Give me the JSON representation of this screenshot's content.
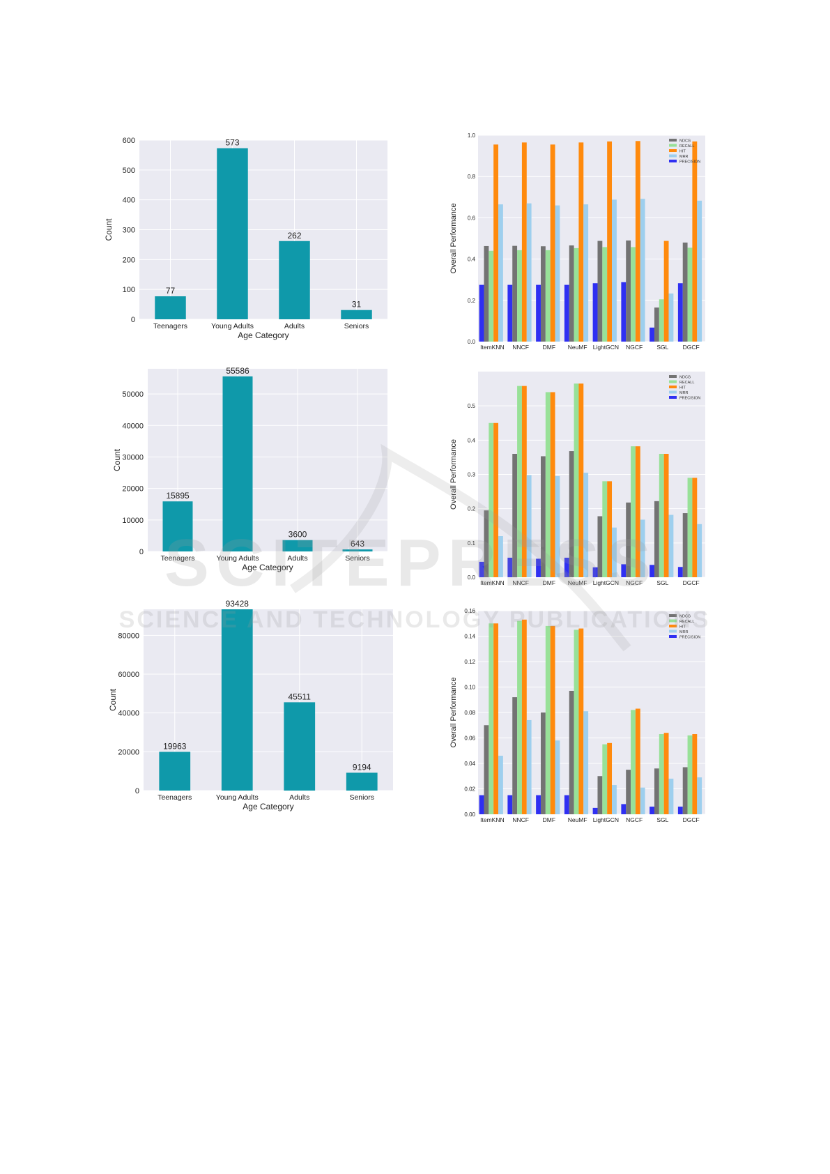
{
  "colors": {
    "bar": "#0f99aa",
    "plot_bg": "#eaeaf2",
    "grid": "#ffffff",
    "NDCG": "#737373",
    "RECALL": "#98e198",
    "HIT": "#ff8a0d",
    "MRR": "#9ecfee",
    "PRECISION": "#2f2ff2"
  },
  "watermark": {
    "line1": "SCITEPRESS",
    "line2": "SCIENCE AND TECHNOLOGY PUBLICATIONS"
  },
  "chart_data": [
    {
      "type": "bar",
      "categories": [
        "Teenagers",
        "Young Adults",
        "Adults",
        "Seniors"
      ],
      "values": [
        77,
        573,
        262,
        31
      ],
      "xlabel": "Age Category",
      "ylabel": "Count",
      "ylim": [
        0,
        600
      ],
      "yticks": [
        0,
        100,
        200,
        300,
        400,
        500,
        600
      ],
      "grid": true
    },
    {
      "type": "bar",
      "categories": [
        "ItemKNN",
        "NNCF",
        "DMF",
        "NeuMF",
        "LightGCN",
        "NGCF",
        "SGL",
        "DGCF"
      ],
      "series": [
        {
          "name": "PRECISION",
          "values": [
            0.275,
            0.275,
            0.275,
            0.275,
            0.283,
            0.288,
            0.068,
            0.283
          ]
        },
        {
          "name": "NDCG",
          "values": [
            0.463,
            0.464,
            0.462,
            0.466,
            0.488,
            0.49,
            0.165,
            0.48
          ]
        },
        {
          "name": "RECALL",
          "values": [
            0.44,
            0.443,
            0.443,
            0.453,
            0.458,
            0.458,
            0.205,
            0.455
          ]
        },
        {
          "name": "HIT",
          "values": [
            0.955,
            0.965,
            0.955,
            0.965,
            0.97,
            0.972,
            0.488,
            0.97
          ]
        },
        {
          "name": "MRR",
          "values": [
            0.665,
            0.67,
            0.66,
            0.665,
            0.688,
            0.692,
            0.233,
            0.683
          ]
        }
      ],
      "ylabel": "Overall Performance",
      "ylim": [
        0,
        1.0
      ],
      "yticks": [
        "0.0",
        "0.2",
        "0.4",
        "0.6",
        "0.8",
        "1.0"
      ],
      "legend": [
        "NDCG",
        "RECALL",
        "HIT",
        "MRR",
        "PRECISION"
      ],
      "legend_position": "top-right"
    },
    {
      "type": "bar",
      "categories": [
        "Teenagers",
        "Young Adults",
        "Adults",
        "Seniors"
      ],
      "values": [
        15895,
        55586,
        3600,
        643
      ],
      "xlabel": "Age Category",
      "ylabel": "Count",
      "ylim": [
        0,
        58000
      ],
      "yticks": [
        0,
        10000,
        20000,
        30000,
        40000,
        50000
      ],
      "grid": true
    },
    {
      "type": "bar",
      "categories": [
        "ItemKNN",
        "NNCF",
        "DMF",
        "NeuMF",
        "LightGCN",
        "NGCF",
        "SGL",
        "DGCF"
      ],
      "series": [
        {
          "name": "PRECISION",
          "values": [
            0.045,
            0.057,
            0.054,
            0.057,
            0.029,
            0.038,
            0.036,
            0.03
          ]
        },
        {
          "name": "NDCG",
          "values": [
            0.195,
            0.36,
            0.353,
            0.368,
            0.178,
            0.218,
            0.222,
            0.187
          ]
        },
        {
          "name": "RECALL",
          "values": [
            0.45,
            0.558,
            0.54,
            0.565,
            0.28,
            0.382,
            0.36,
            0.29
          ]
        },
        {
          "name": "HIT",
          "values": [
            0.45,
            0.558,
            0.54,
            0.565,
            0.28,
            0.382,
            0.36,
            0.29
          ]
        },
        {
          "name": "MRR",
          "values": [
            0.12,
            0.298,
            0.295,
            0.305,
            0.145,
            0.168,
            0.182,
            0.155
          ]
        }
      ],
      "ylabel": "Overall Performance",
      "ylim": [
        0,
        0.6
      ],
      "yticks": [
        "0.0",
        "0.1",
        "0.2",
        "0.3",
        "0.4",
        "0.5"
      ],
      "legend": [
        "NDCG",
        "RECALL",
        "HIT",
        "MRR",
        "PRECISION"
      ],
      "legend_position": "top-right"
    },
    {
      "type": "bar",
      "categories": [
        "Teenagers",
        "Young Adults",
        "Adults",
        "Seniors"
      ],
      "values": [
        19963,
        93428,
        45511,
        9194
      ],
      "xlabel": "Age Category",
      "ylabel": "Count",
      "ylim": [
        0,
        93428
      ],
      "yticks": [
        0,
        20000,
        40000,
        60000,
        80000
      ],
      "grid": true
    },
    {
      "type": "bar",
      "categories": [
        "ItemKNN",
        "NNCF",
        "DMF",
        "NeuMF",
        "LightGCN",
        "NGCF",
        "SGL",
        "DGCF"
      ],
      "series": [
        {
          "name": "PRECISION",
          "values": [
            0.015,
            0.015,
            0.015,
            0.015,
            0.005,
            0.008,
            0.006,
            0.006
          ]
        },
        {
          "name": "NDCG",
          "values": [
            0.07,
            0.092,
            0.08,
            0.097,
            0.03,
            0.035,
            0.036,
            0.037
          ]
        },
        {
          "name": "RECALL",
          "values": [
            0.15,
            0.152,
            0.148,
            0.145,
            0.055,
            0.082,
            0.063,
            0.062
          ]
        },
        {
          "name": "HIT",
          "values": [
            0.15,
            0.153,
            0.148,
            0.146,
            0.056,
            0.083,
            0.064,
            0.063
          ]
        },
        {
          "name": "MRR",
          "values": [
            0.046,
            0.074,
            0.058,
            0.081,
            0.023,
            0.021,
            0.028,
            0.029
          ]
        }
      ],
      "ylabel": "Overall Performance",
      "ylim": [
        0,
        0.16
      ],
      "yticks": [
        "0.00",
        "0.02",
        "0.04",
        "0.06",
        "0.08",
        "0.10",
        "0.12",
        "0.14",
        "0.16"
      ],
      "legend": [
        "NDCG",
        "RECALL",
        "HIT",
        "MRR",
        "PRECISION"
      ],
      "legend_position": "top-right"
    }
  ]
}
